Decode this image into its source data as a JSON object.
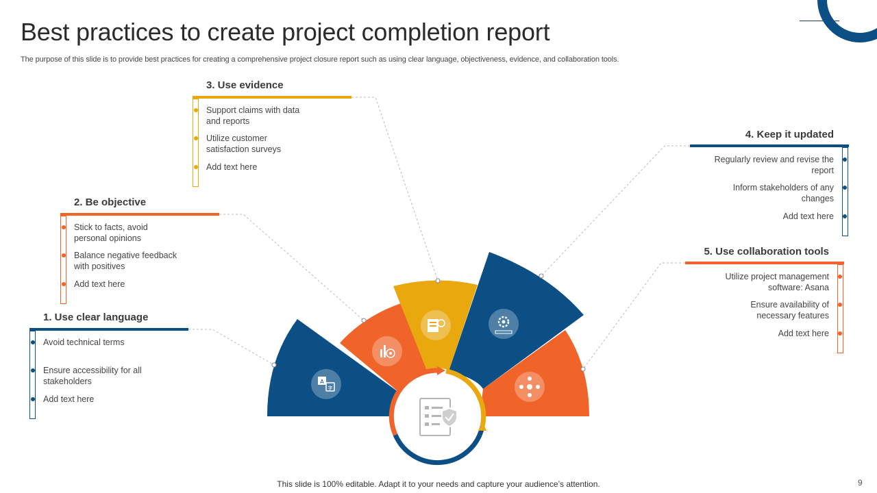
{
  "title": "Best practices to create project completion report",
  "subtitle": "The purpose of this slide is to provide best practices for creating a comprehensive project closure report such as using clear language, objectiveness, evidence, and collaboration tools.",
  "footer": "This slide is 100% editable. Adapt it to your needs and capture your audience’s attention.",
  "page_number": "9",
  "colors": {
    "blue": "#0b4f85",
    "orange": "#f0642a",
    "yellow": "#e8a80e",
    "icon_circle": "#ffffff",
    "connector": "#bbbbbb"
  },
  "center_icon": "checklist-shield-icon",
  "practices": [
    {
      "heading": "1. Use clear language",
      "color": "blue",
      "icon": "translate-icon",
      "items": [
        "Avoid technical terms",
        "Ensure accessibility for all stakeholders",
        "Add text here"
      ]
    },
    {
      "heading": "2. Be objective",
      "color": "orange",
      "icon": "target-chart-icon",
      "items": [
        "Stick to facts, avoid personal opinions",
        "Balance negative feedback with positives",
        "Add text here"
      ]
    },
    {
      "heading": "3. Use evidence",
      "color": "yellow",
      "icon": "document-evidence-icon",
      "items": [
        "Support claims with data and reports",
        "Utilize customer satisfaction surveys",
        "Add text here"
      ]
    },
    {
      "heading": "4. Keep it updated",
      "color": "blue",
      "icon": "update-gear-icon",
      "items": [
        "Regularly review and revise the report",
        "Inform stakeholders of any changes",
        "Add text here"
      ]
    },
    {
      "heading": "5. Use collaboration tools",
      "color": "orange",
      "icon": "collaboration-icon",
      "items": [
        "Utilize project management software: Asana",
        "Ensure availability of necessary features",
        "Add text here"
      ]
    }
  ]
}
